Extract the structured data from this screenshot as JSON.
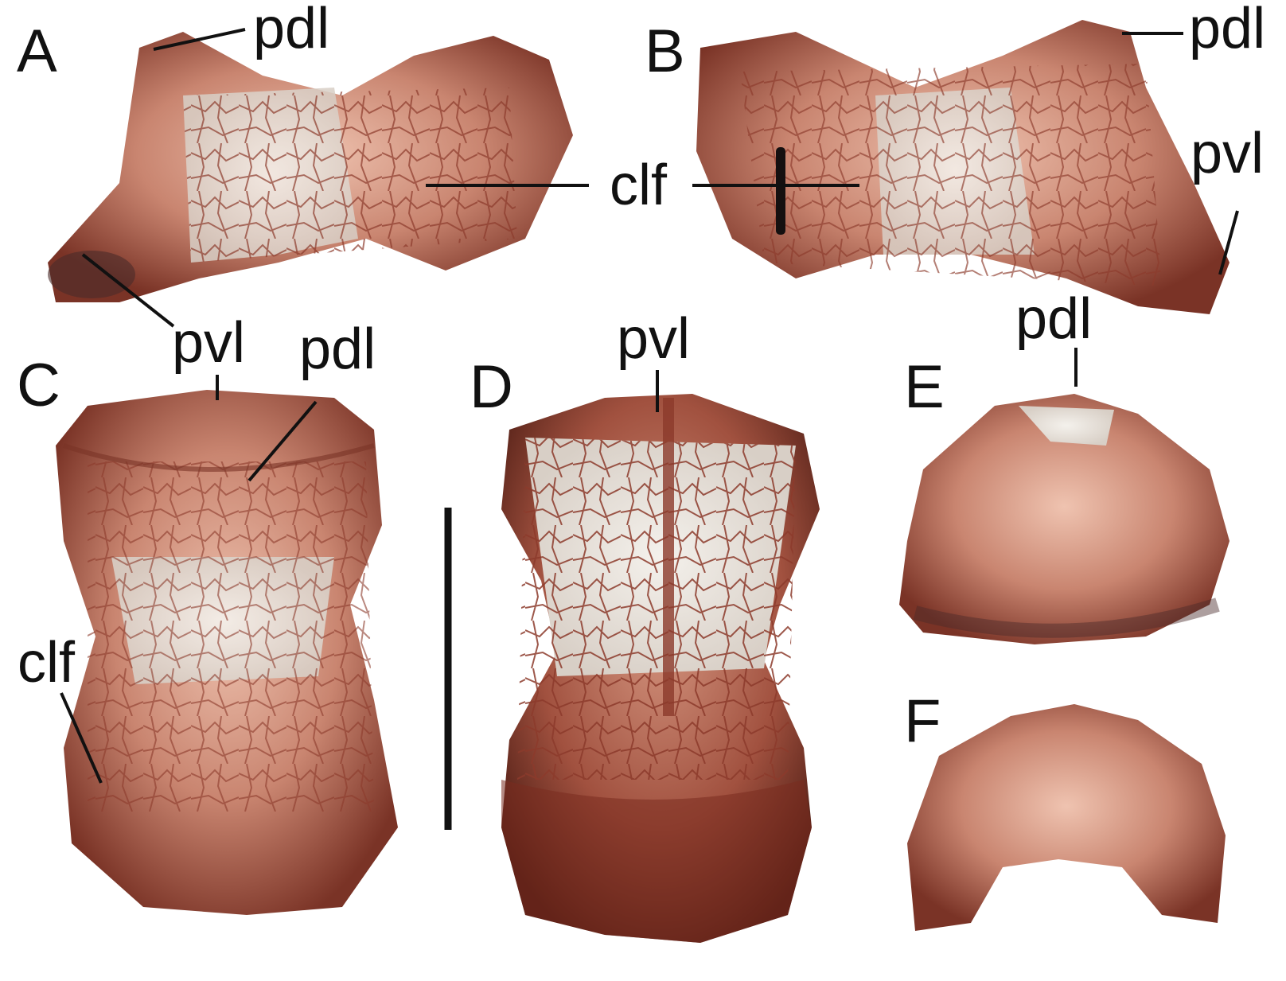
{
  "figure": {
    "panels": [
      {
        "letter": "A",
        "labels": [
          "pdl",
          "clf",
          "pvl"
        ]
      },
      {
        "letter": "B",
        "labels": [
          "pdl",
          "clf",
          "pvl"
        ]
      },
      {
        "letter": "C",
        "labels": [
          "pvl",
          "pdl",
          "clf"
        ]
      },
      {
        "letter": "D",
        "labels": [
          "pvl"
        ]
      },
      {
        "letter": "E",
        "labels": [
          "pdl"
        ]
      },
      {
        "letter": "F",
        "labels": []
      }
    ],
    "scale_bar_label": "",
    "colors": {
      "background": "#ffffff",
      "bone_red": "#b86a55",
      "bone_dark": "#6e2a1f",
      "bone_white": "#ede8e2",
      "ink": "#111111"
    }
  }
}
